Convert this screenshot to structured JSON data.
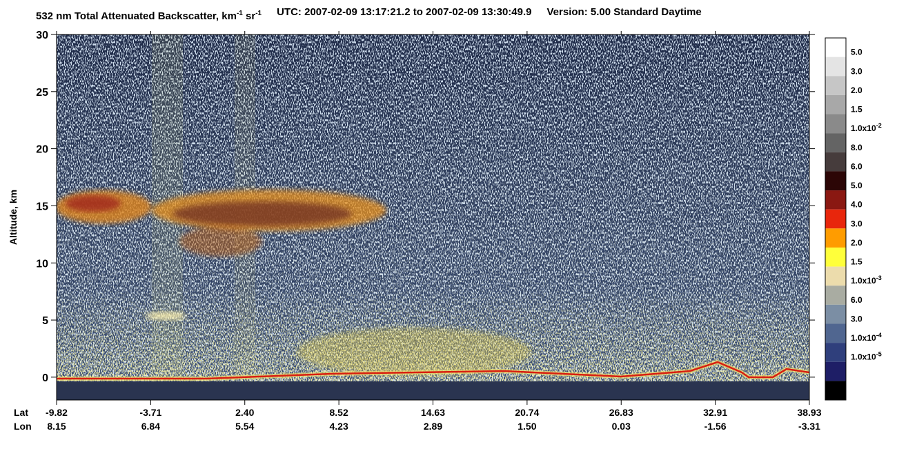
{
  "chart_data": {
    "type": "heatmap",
    "title": [
      "532 nm Total Attenuated Backscatter, km",
      "-1",
      " sr",
      "-1"
    ],
    "time_range": "UTC:  2007-02-09 13:17:21.2  to  2007-02-09 13:30:49.9",
    "version": "Version: 5.00  Standard  Daytime",
    "y_label": "Altitude, km",
    "ylim": [
      -2,
      30
    ],
    "yticks": [
      0,
      5,
      10,
      15,
      20,
      25,
      30
    ],
    "x_rows": [
      {
        "name": "Lat",
        "labels": [
          "-9.82",
          "-3.71",
          "2.40",
          "8.52",
          "14.63",
          "20.74",
          "26.83",
          "32.91",
          "38.93"
        ]
      },
      {
        "name": "Lon",
        "labels": [
          "8.15",
          "6.84",
          "5.54",
          "4.23",
          "2.89",
          "1.50",
          "0.03",
          "-1.56",
          "-3.31"
        ]
      }
    ],
    "colorbar": {
      "colors": [
        "#ffffff",
        "#e4e4e4",
        "#c6c6c6",
        "#a8a8a8",
        "#8a8a8a",
        "#646464",
        "#463c3c",
        "#2c0606",
        "#8a1812",
        "#e8260c",
        "#ff9c00",
        "#ffff3a",
        "#ecdcac",
        "#a9aca2",
        "#7b8ea4",
        "#506690",
        "#2f3f7c",
        "#1e1e66",
        "#000000"
      ],
      "labels": [
        {
          "text": "5.0"
        },
        {
          "text": "3.0"
        },
        {
          "text": "2.0"
        },
        {
          "text": "1.5"
        },
        {
          "text": "1.0x10",
          "sup": "-2"
        },
        {
          "text": "8.0"
        },
        {
          "text": "6.0"
        },
        {
          "text": "5.0"
        },
        {
          "text": "4.0"
        },
        {
          "text": "3.0"
        },
        {
          "text": "2.0"
        },
        {
          "text": "1.5"
        },
        {
          "text": "1.0x10",
          "sup": "-3"
        },
        {
          "text": "6.0"
        },
        {
          "text": "3.0"
        },
        {
          "text": "1.0x10",
          "sup": "-4"
        },
        {
          "text": "1.0x10",
          "sup": "-5"
        }
      ]
    }
  }
}
